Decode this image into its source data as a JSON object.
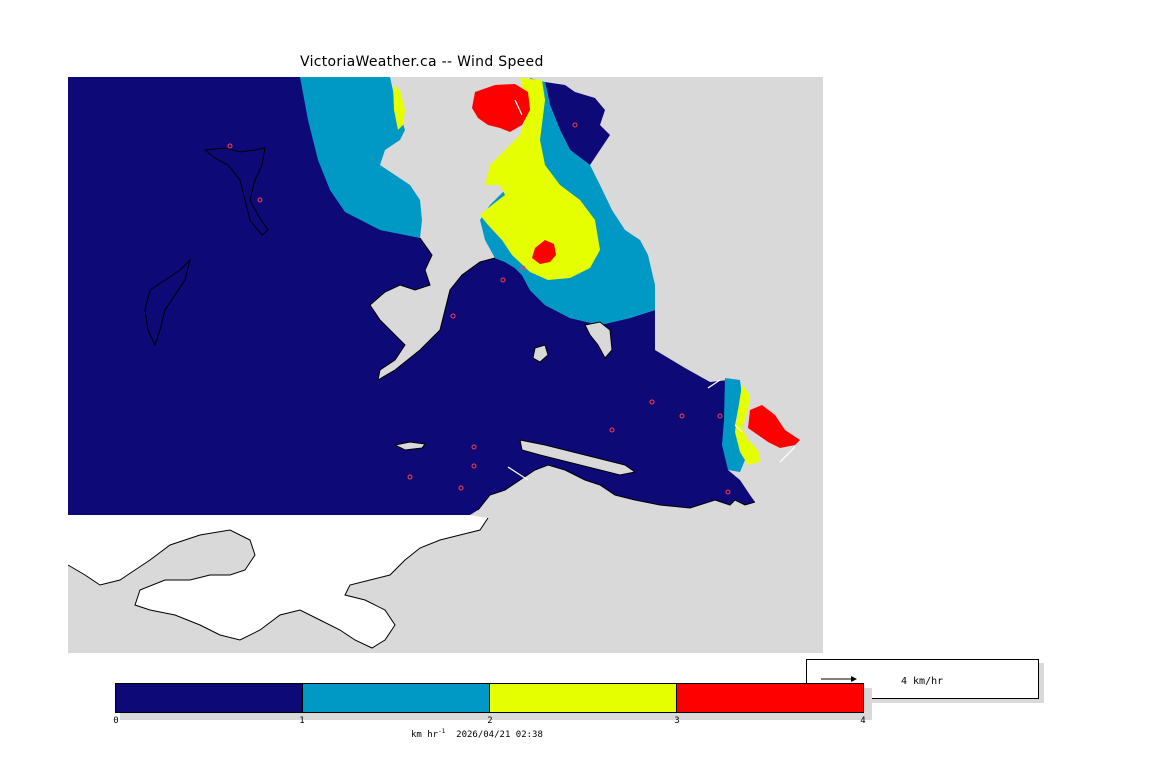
{
  "title": "VictoriaWeather.ca -- Wind Speed",
  "colors": {
    "land": "#d9d9d9",
    "outside": "#ffffff",
    "band_0_1": "#0d0a78",
    "band_1_2": "#0098c4",
    "band_2_3": "#e6ff00",
    "band_3_4": "#ff0000",
    "station_marker": "#ff4040"
  },
  "arrow_legend": {
    "label": "4 km/hr"
  },
  "colorbar": {
    "ticks": [
      "0",
      "1",
      "2",
      "3",
      "4"
    ],
    "units_text": "km hr",
    "units_exponent": "-1",
    "timestamp": "2026/04/21 02:38"
  }
}
